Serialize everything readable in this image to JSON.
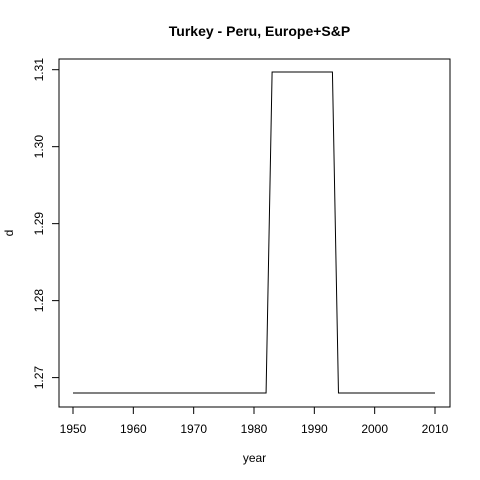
{
  "chart_data": {
    "type": "line",
    "title": "Turkey - Peru, Europe+S&P",
    "xlabel": "year",
    "ylabel": "d",
    "xlim": [
      1950,
      2010
    ],
    "ylim": [
      1.268,
      1.3097
    ],
    "x_ticks": [
      1950,
      1960,
      1970,
      1980,
      1990,
      2000,
      2010
    ],
    "x_tick_labels": [
      "1950",
      "1960",
      "1970",
      "1980",
      "1990",
      "2000",
      "2010"
    ],
    "y_ticks": [
      1.27,
      1.28,
      1.29,
      1.3,
      1.31
    ],
    "y_tick_labels": [
      "1.27",
      "1.28",
      "1.29",
      "1.30",
      "1.31"
    ],
    "grid": false,
    "legend": "none",
    "line_color": "#000000",
    "series": [
      {
        "x": [
          1950,
          1982,
          1983,
          1993,
          1994,
          2010
        ],
        "y": [
          1.268,
          1.268,
          1.3097,
          1.3097,
          1.268,
          1.268
        ]
      }
    ]
  }
}
